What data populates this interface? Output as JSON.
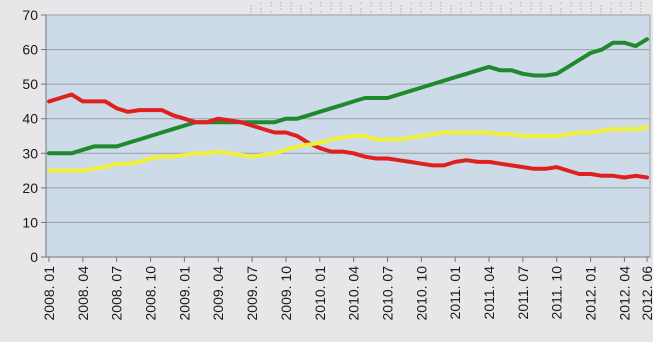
{
  "chart_data": {
    "type": "line",
    "title": "",
    "xlabel": "",
    "ylabel": "",
    "ylim": [
      0,
      70
    ],
    "yticks": [
      0,
      10,
      20,
      30,
      40,
      50,
      60,
      70
    ],
    "grid": true,
    "legend": "none",
    "x_tick_labels": [
      "2008. 01",
      "2008. 04",
      "2008. 07",
      "2008. 10",
      "2009. 01",
      "2009. 04",
      "2009. 07",
      "2009. 10",
      "2010. 01",
      "2010. 04",
      "2010. 07",
      "2010. 10",
      "2011. 01",
      "2011. 04",
      "2011. 07",
      "2011. 10",
      "2012. 01",
      "2012. 04",
      "2012. 06"
    ],
    "x": [
      "2008-01",
      "2008-02",
      "2008-03",
      "2008-04",
      "2008-05",
      "2008-06",
      "2008-07",
      "2008-08",
      "2008-09",
      "2008-10",
      "2008-11",
      "2008-12",
      "2009-01",
      "2009-02",
      "2009-03",
      "2009-04",
      "2009-05",
      "2009-06",
      "2009-07",
      "2009-08",
      "2009-09",
      "2009-10",
      "2009-11",
      "2009-12",
      "2010-01",
      "2010-02",
      "2010-03",
      "2010-04",
      "2010-05",
      "2010-06",
      "2010-07",
      "2010-08",
      "2010-09",
      "2010-10",
      "2010-11",
      "2010-12",
      "2011-01",
      "2011-02",
      "2011-03",
      "2011-04",
      "2011-05",
      "2011-06",
      "2011-07",
      "2011-08",
      "2011-09",
      "2011-10",
      "2011-11",
      "2011-12",
      "2012-01",
      "2012-02",
      "2012-03",
      "2012-04",
      "2012-05",
      "2012-06"
    ],
    "series": [
      {
        "color": "#1e8a2c",
        "values": [
          30,
          30,
          30,
          31,
          32,
          32,
          32,
          33,
          34,
          35,
          36,
          37,
          38,
          39,
          39,
          39,
          39,
          39,
          39,
          39,
          39,
          40,
          40,
          41,
          42,
          43,
          44,
          45,
          46,
          46,
          46,
          47,
          48,
          49,
          50,
          51,
          52,
          53,
          54,
          55,
          54,
          54,
          53,
          52.5,
          52.5,
          53,
          55,
          57,
          59,
          60,
          62,
          62,
          61,
          63
        ]
      },
      {
        "color": "#e02020",
        "values": [
          45,
          46,
          47,
          45,
          45,
          45,
          43,
          42,
          42.5,
          42.5,
          42.5,
          41,
          40,
          39,
          39,
          40,
          39.5,
          39,
          38,
          37,
          36,
          36,
          35,
          33,
          31.5,
          30.5,
          30.5,
          30,
          29,
          28.5,
          28.5,
          28,
          27.5,
          27,
          26.5,
          26.5,
          27.5,
          28,
          27.5,
          27.5,
          27,
          26.5,
          26,
          25.5,
          25.5,
          26,
          25,
          24,
          24,
          23.5,
          23.5,
          23,
          23.5,
          23
        ]
      },
      {
        "color": "#f0f03a",
        "values": [
          25,
          25,
          25,
          25,
          25.5,
          26,
          27,
          27,
          27.5,
          28.5,
          29,
          29,
          29.5,
          30,
          30,
          30.5,
          30,
          29.5,
          29,
          29.5,
          30,
          31,
          32,
          32.5,
          33,
          34,
          34.5,
          35,
          35,
          34,
          34,
          34,
          34.5,
          35,
          35.5,
          36,
          36,
          36,
          36,
          36,
          35.5,
          35.5,
          35,
          35,
          35,
          35,
          35.5,
          36,
          36,
          36.5,
          37,
          37,
          37,
          37.5
        ]
      }
    ]
  }
}
